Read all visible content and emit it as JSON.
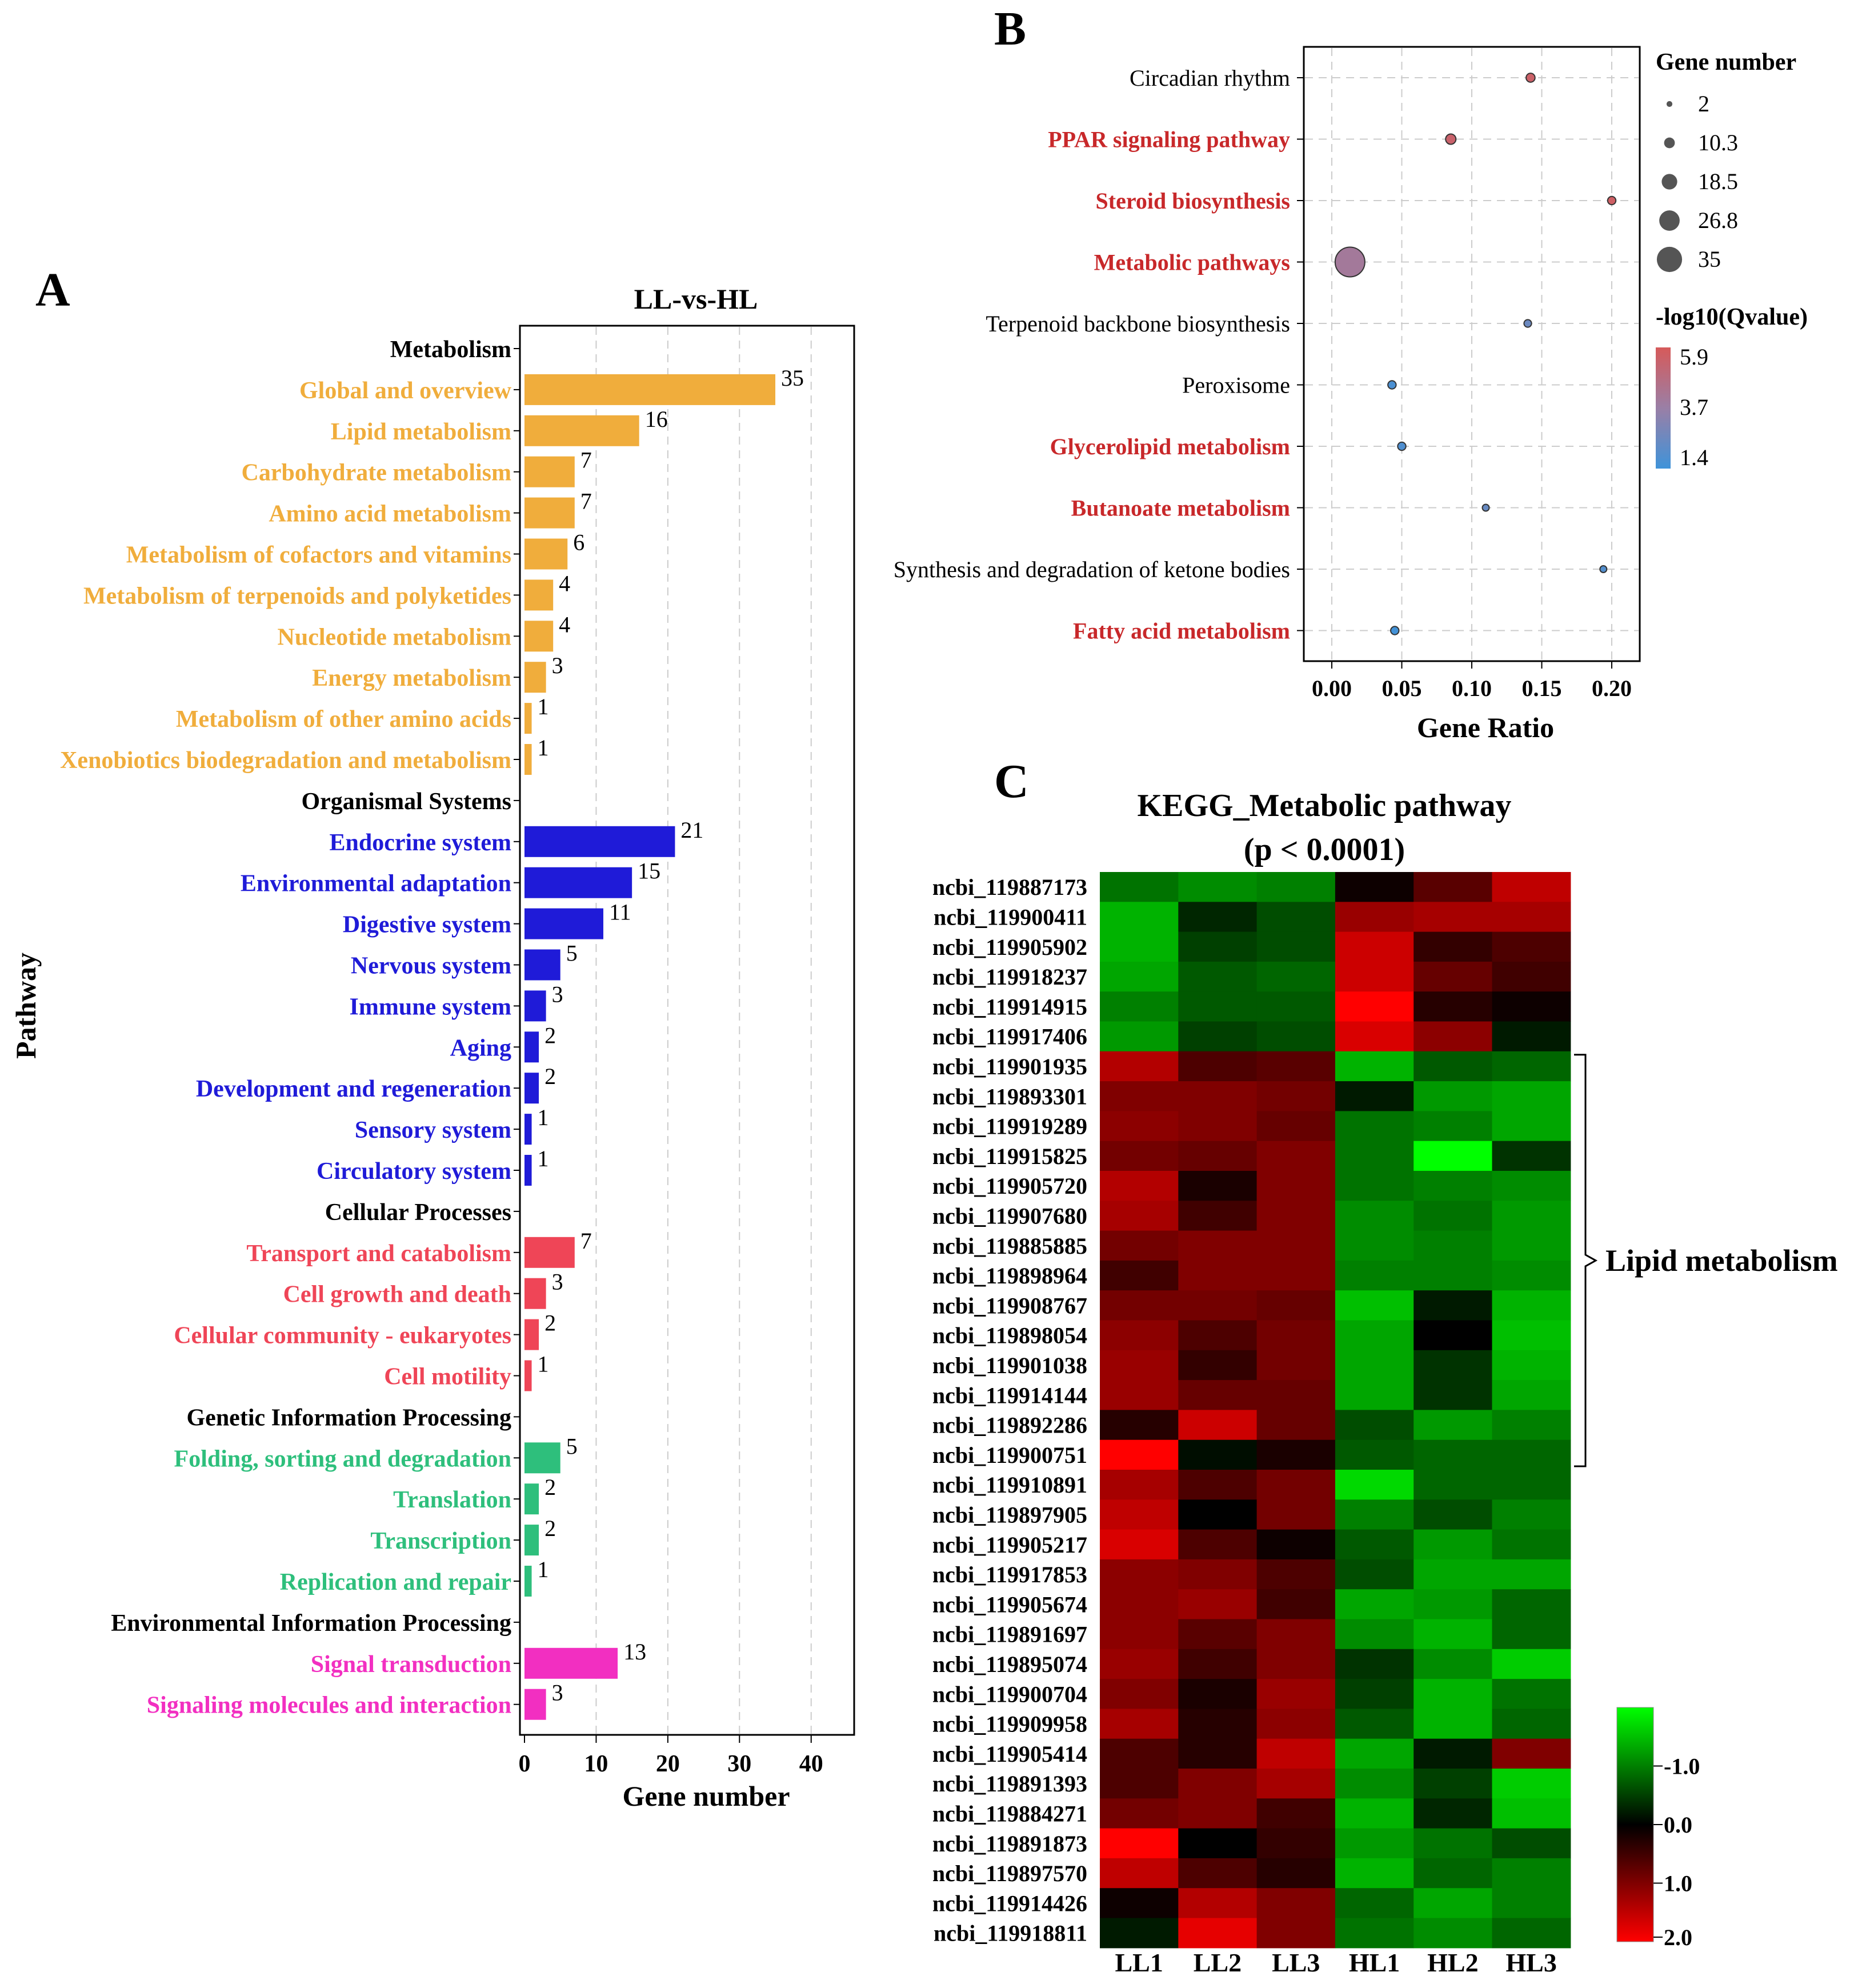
{
  "panels": {
    "a": "A",
    "b": "B",
    "c": "C"
  },
  "chart_data": [
    {
      "type": "bar",
      "orientation": "horizontal",
      "title": "LL-vs-HL",
      "xlabel": "Gene number",
      "ylabel": "Pathway",
      "xlim": [
        0,
        46
      ],
      "xticks": [
        "0",
        "10",
        "20",
        "30",
        "40"
      ],
      "grid": "vertical dashed",
      "colors": {
        "metabolism": "#f0ad3c",
        "organismal": "#1f1bd8",
        "cellular": "#ef4557",
        "genetic": "#2ebf7c",
        "environmental": "#f22fc1",
        "header": "#000000"
      },
      "rows": [
        {
          "label": "Metabolism",
          "header": true
        },
        {
          "label": "Global and overview",
          "value": 35,
          "value_label": "35",
          "group": "metabolism"
        },
        {
          "label": "Lipid metabolism",
          "value": 16,
          "value_label": "16",
          "group": "metabolism"
        },
        {
          "label": "Carbohydrate metabolism",
          "value": 7,
          "value_label": "7",
          "group": "metabolism"
        },
        {
          "label": "Amino acid metabolism",
          "value": 7,
          "value_label": "7",
          "group": "metabolism"
        },
        {
          "label": "Metabolism of cofactors and vitamins",
          "value": 6,
          "value_label": "6",
          "group": "metabolism"
        },
        {
          "label": "Metabolism of terpenoids and polyketides",
          "value": 4,
          "value_label": "4",
          "group": "metabolism"
        },
        {
          "label": "Nucleotide metabolism",
          "value": 4,
          "value_label": "4",
          "group": "metabolism"
        },
        {
          "label": "Energy metabolism",
          "value": 3,
          "value_label": "3",
          "group": "metabolism"
        },
        {
          "label": "Metabolism of other amino acids",
          "value": 1,
          "value_label": "1",
          "group": "metabolism"
        },
        {
          "label": "Xenobiotics biodegradation and metabolism",
          "value": 1,
          "value_label": "1",
          "group": "metabolism"
        },
        {
          "label": "Organismal Systems",
          "header": true
        },
        {
          "label": "Endocrine system",
          "value": 21,
          "value_label": "21",
          "group": "organismal"
        },
        {
          "label": "Environmental adaptation",
          "value": 15,
          "value_label": "15",
          "group": "organismal"
        },
        {
          "label": "Digestive system",
          "value": 11,
          "value_label": "11",
          "group": "organismal"
        },
        {
          "label": "Nervous system",
          "value": 5,
          "value_label": "5",
          "group": "organismal"
        },
        {
          "label": "Immune system",
          "value": 3,
          "value_label": "3",
          "group": "organismal"
        },
        {
          "label": "Aging",
          "value": 2,
          "value_label": "2",
          "group": "organismal"
        },
        {
          "label": "Development and regeneration",
          "value": 2,
          "value_label": "2",
          "group": "organismal"
        },
        {
          "label": "Sensory system",
          "value": 1,
          "value_label": "1",
          "group": "organismal"
        },
        {
          "label": "Circulatory system",
          "value": 1,
          "value_label": "1",
          "group": "organismal"
        },
        {
          "label": "Cellular Processes",
          "header": true
        },
        {
          "label": "Transport and catabolism",
          "value": 7,
          "value_label": "7",
          "group": "cellular"
        },
        {
          "label": "Cell growth and death",
          "value": 3,
          "value_label": "3",
          "group": "cellular"
        },
        {
          "label": "Cellular community - eukaryotes",
          "value": 2,
          "value_label": "2",
          "group": "cellular"
        },
        {
          "label": "Cell motility",
          "value": 1,
          "value_label": "1",
          "group": "cellular"
        },
        {
          "label": "Genetic Information Processing",
          "header": true
        },
        {
          "label": "Folding, sorting and degradation",
          "value": 5,
          "value_label": "5",
          "group": "genetic"
        },
        {
          "label": "Translation",
          "value": 2,
          "value_label": "2",
          "group": "genetic"
        },
        {
          "label": "Transcription",
          "value": 2,
          "value_label": "2",
          "group": "genetic"
        },
        {
          "label": "Replication and repair",
          "value": 1,
          "value_label": "1",
          "group": "genetic"
        },
        {
          "label": "Environmental Information Processing",
          "header": true
        },
        {
          "label": "Signal transduction",
          "value": 13,
          "value_label": "13",
          "group": "environmental"
        },
        {
          "label": "Signaling molecules and interaction",
          "value": 3,
          "value_label": "3",
          "group": "environmental"
        }
      ]
    },
    {
      "type": "scatter",
      "subtype": "bubble",
      "xlabel": "Gene Ratio",
      "xlim": [
        -0.02,
        0.22
      ],
      "xticks": [
        0.0,
        0.05,
        0.1,
        0.15,
        0.2
      ],
      "xtick_labels": [
        "0.00",
        "0.05",
        "0.10",
        "0.15",
        "0.20"
      ],
      "highlight_color": "#c8282a",
      "points": [
        {
          "label": "Circadian rhythm",
          "x": 0.142,
          "size": 5,
          "q": 5.5,
          "highlight": false
        },
        {
          "label": "PPAR signaling pathway",
          "x": 0.085,
          "size": 7,
          "q": 5.4,
          "highlight": true
        },
        {
          "label": "Steroid biosynthesis",
          "x": 0.2,
          "size": 4,
          "q": 5.6,
          "highlight": true
        },
        {
          "label": "Metabolic pathways",
          "x": 0.013,
          "size": 35,
          "q": 4.0,
          "highlight": true
        },
        {
          "label": "Terpenoid backbone biosynthesis",
          "x": 0.14,
          "size": 3,
          "q": 2.5,
          "highlight": false
        },
        {
          "label": "Peroxisome",
          "x": 0.043,
          "size": 4,
          "q": 1.7,
          "highlight": false
        },
        {
          "label": "Glycerolipid metabolism",
          "x": 0.05,
          "size": 4,
          "q": 1.8,
          "highlight": true
        },
        {
          "label": "Butanoate metabolism",
          "x": 0.11,
          "size": 2,
          "q": 2.4,
          "highlight": true
        },
        {
          "label": "Synthesis and degradation of ketone bodies",
          "x": 0.194,
          "size": 2,
          "q": 1.9,
          "highlight": false
        },
        {
          "label": "Fatty acid metabolism",
          "x": 0.045,
          "size": 4,
          "q": 1.5,
          "highlight": true
        }
      ],
      "size_legend": {
        "title": "Gene number",
        "values": [
          2,
          10.3,
          18.5,
          26.8,
          35
        ],
        "labels": [
          "2",
          "10.3",
          "18.5",
          "26.8",
          "35"
        ]
      },
      "color_legend": {
        "title": "-log10(Qvalue)",
        "labels": [
          "5.9",
          "3.7",
          "1.4"
        ],
        "colors": [
          "#d65a5a",
          "#9a7fa6",
          "#3f93d9"
        ]
      }
    },
    {
      "type": "heatmap",
      "title": "KEGG_Metabolic pathway",
      "subtitle": "(p < 0.0001)",
      "columns": [
        "LL1",
        "LL2",
        "LL3",
        "HL1",
        "HL2",
        "HL3"
      ],
      "rows": [
        "ncbi_119887173",
        "ncbi_119900411",
        "ncbi_119905902",
        "ncbi_119918237",
        "ncbi_119914915",
        "ncbi_119917406",
        "ncbi_119901935",
        "ncbi_119893301",
        "ncbi_119919289",
        "ncbi_119915825",
        "ncbi_119905720",
        "ncbi_119907680",
        "ncbi_119885885",
        "ncbi_119898964",
        "ncbi_119908767",
        "ncbi_119898054",
        "ncbi_119901038",
        "ncbi_119914144",
        "ncbi_119892286",
        "ncbi_119900751",
        "ncbi_119910891",
        "ncbi_119897905",
        "ncbi_119905217",
        "ncbi_119917853",
        "ncbi_119905674",
        "ncbi_119891697",
        "ncbi_119895074",
        "ncbi_119900704",
        "ncbi_119909958",
        "ncbi_119905414",
        "ncbi_119891393",
        "ncbi_119884271",
        "ncbi_119891873",
        "ncbi_119897570",
        "ncbi_119914426",
        "ncbi_119918811"
      ],
      "values": [
        [
          -0.9,
          -1.1,
          -1.0,
          0.1,
          0.7,
          1.5
        ],
        [
          -1.4,
          -0.3,
          -0.6,
          1.2,
          1.3,
          1.3
        ],
        [
          -1.4,
          -0.5,
          -0.6,
          1.6,
          0.4,
          0.6
        ],
        [
          -1.3,
          -0.7,
          -0.8,
          1.6,
          0.8,
          0.5
        ],
        [
          -1.0,
          -0.7,
          -0.7,
          2.0,
          0.3,
          0.1
        ],
        [
          -1.2,
          -0.5,
          -0.6,
          1.7,
          1.1,
          -0.2
        ],
        [
          1.4,
          0.6,
          0.7,
          -1.4,
          -0.7,
          -0.8
        ],
        [
          1.0,
          1.0,
          0.9,
          -0.2,
          -1.2,
          -1.3
        ],
        [
          1.1,
          1.0,
          0.8,
          -0.9,
          -1.0,
          -1.3
        ],
        [
          0.9,
          0.8,
          1.0,
          -0.9,
          -2.0,
          -0.4
        ],
        [
          1.4,
          0.2,
          1.0,
          -0.9,
          -1.0,
          -1.1
        ],
        [
          1.3,
          0.5,
          1.0,
          -1.1,
          -0.9,
          -1.2
        ],
        [
          0.9,
          1.0,
          1.0,
          -1.1,
          -1.0,
          -1.2
        ],
        [
          0.5,
          1.0,
          1.0,
          -1.0,
          -1.0,
          -1.1
        ],
        [
          0.9,
          0.9,
          0.8,
          -1.5,
          -0.2,
          -1.4
        ],
        [
          1.1,
          0.6,
          0.9,
          -1.3,
          0.0,
          -1.5
        ],
        [
          1.2,
          0.4,
          0.9,
          -1.3,
          -0.4,
          -1.4
        ],
        [
          1.2,
          0.8,
          0.8,
          -1.3,
          -0.4,
          -1.3
        ],
        [
          0.3,
          1.6,
          0.8,
          -0.6,
          -1.2,
          -1.0
        ],
        [
          2.0,
          -0.1,
          0.2,
          -0.7,
          -0.8,
          -0.8
        ],
        [
          1.3,
          0.6,
          0.9,
          -1.7,
          -0.8,
          -0.8
        ],
        [
          1.5,
          0.0,
          0.9,
          -1.0,
          -0.6,
          -1.0
        ],
        [
          1.7,
          0.6,
          0.1,
          -0.7,
          -1.2,
          -0.9
        ],
        [
          1.1,
          1.0,
          0.6,
          -0.6,
          -1.3,
          -1.3
        ],
        [
          1.1,
          1.2,
          0.5,
          -1.3,
          -1.2,
          -0.8
        ],
        [
          1.1,
          0.7,
          1.0,
          -1.1,
          -1.4,
          -0.8
        ],
        [
          1.2,
          0.5,
          1.0,
          -0.4,
          -1.1,
          -1.6
        ],
        [
          1.0,
          0.2,
          1.2,
          -0.5,
          -1.4,
          -0.9
        ],
        [
          1.3,
          0.3,
          1.1,
          -0.7,
          -1.4,
          -0.8
        ],
        [
          0.6,
          0.3,
          1.5,
          -1.3,
          -0.2,
          1.0
        ],
        [
          0.6,
          1.0,
          1.3,
          -1.1,
          -0.5,
          -1.6
        ],
        [
          0.9,
          1.0,
          0.5,
          -1.4,
          -0.3,
          -1.5
        ],
        [
          2.0,
          0.0,
          0.4,
          -1.2,
          -0.9,
          -0.6
        ],
        [
          1.5,
          0.6,
          0.3,
          -1.4,
          -0.8,
          -1.0
        ],
        [
          0.1,
          1.4,
          1.0,
          -0.8,
          -1.3,
          -1.0
        ],
        [
          -0.2,
          1.8,
          1.0,
          -0.9,
          -1.1,
          -0.8
        ]
      ],
      "bracket_label": "Lipid metabolism",
      "bracket_rows": [
        "ncbi_119901935",
        "ncbi_119900751"
      ],
      "scale": {
        "min": -2.0,
        "max": 2.0,
        "labels": [
          "-1.0",
          "0.0",
          "1.0",
          "2.0"
        ],
        "low_color": "#00ff00",
        "mid_color": "#000000",
        "high_color": "#ff0000"
      }
    }
  ]
}
